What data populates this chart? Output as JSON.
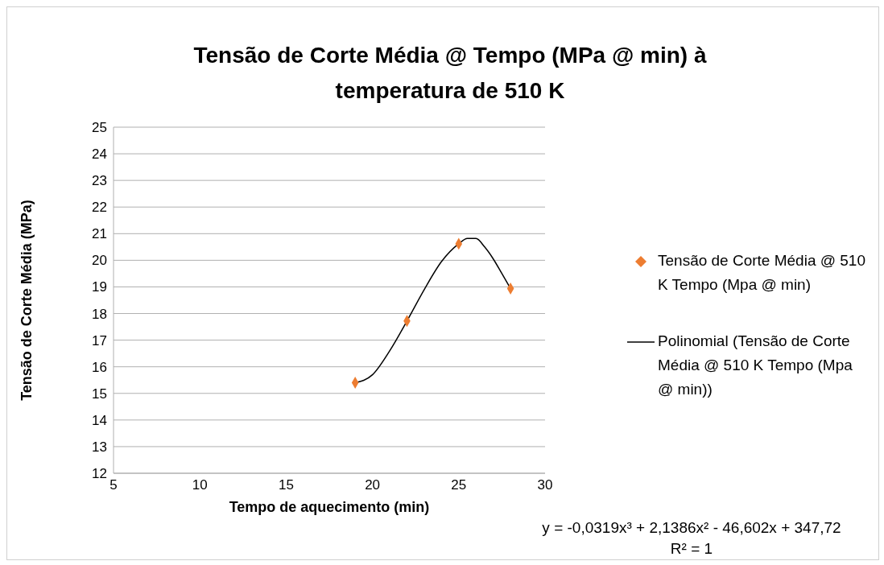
{
  "chart_data": {
    "type": "scatter",
    "title": "Tensão de Corte Média @ Tempo (MPa @ min) à temperatura de 510 K",
    "xlabel": "Tempo de aquecimento (min)",
    "ylabel": "Tensão de Corte Média (MPa)",
    "x": [
      19,
      22,
      25,
      28
    ],
    "series": [
      {
        "name": "Tensão de Corte Média @ 510 K Tempo (Mpa @ min)",
        "color": "#ed7d31",
        "values": [
          15.4,
          17.72,
          20.62,
          18.94
        ],
        "marker": "diamond"
      },
      {
        "type": "line",
        "name": "Polinomial (Tensão de Corte Média @ 510 K Tempo (Mpa @ min))",
        "color": "#000000",
        "x": [
          19,
          20,
          21,
          22,
          23,
          24,
          25,
          25.5,
          26,
          26.5,
          27,
          27.5,
          28
        ],
        "values": [
          15.4,
          15.7,
          16.6,
          17.72,
          18.9,
          19.95,
          20.62,
          20.82,
          20.82,
          20.5,
          20.05,
          19.5,
          18.94
        ],
        "marker": "none",
        "line_style": "solid"
      }
    ],
    "xlim": [
      5,
      30
    ],
    "xticks": [
      5,
      10,
      15,
      20,
      25,
      30
    ],
    "ylim": [
      12,
      25
    ],
    "yticks": [
      12,
      13,
      14,
      15,
      16,
      17,
      18,
      19,
      20,
      21,
      22,
      23,
      24,
      25
    ],
    "grid": "y",
    "legend": "right",
    "annotations": [
      "y = -0,0319x³ + 2,1386x² - 46,602x + 347,72",
      "R² = 1"
    ]
  }
}
